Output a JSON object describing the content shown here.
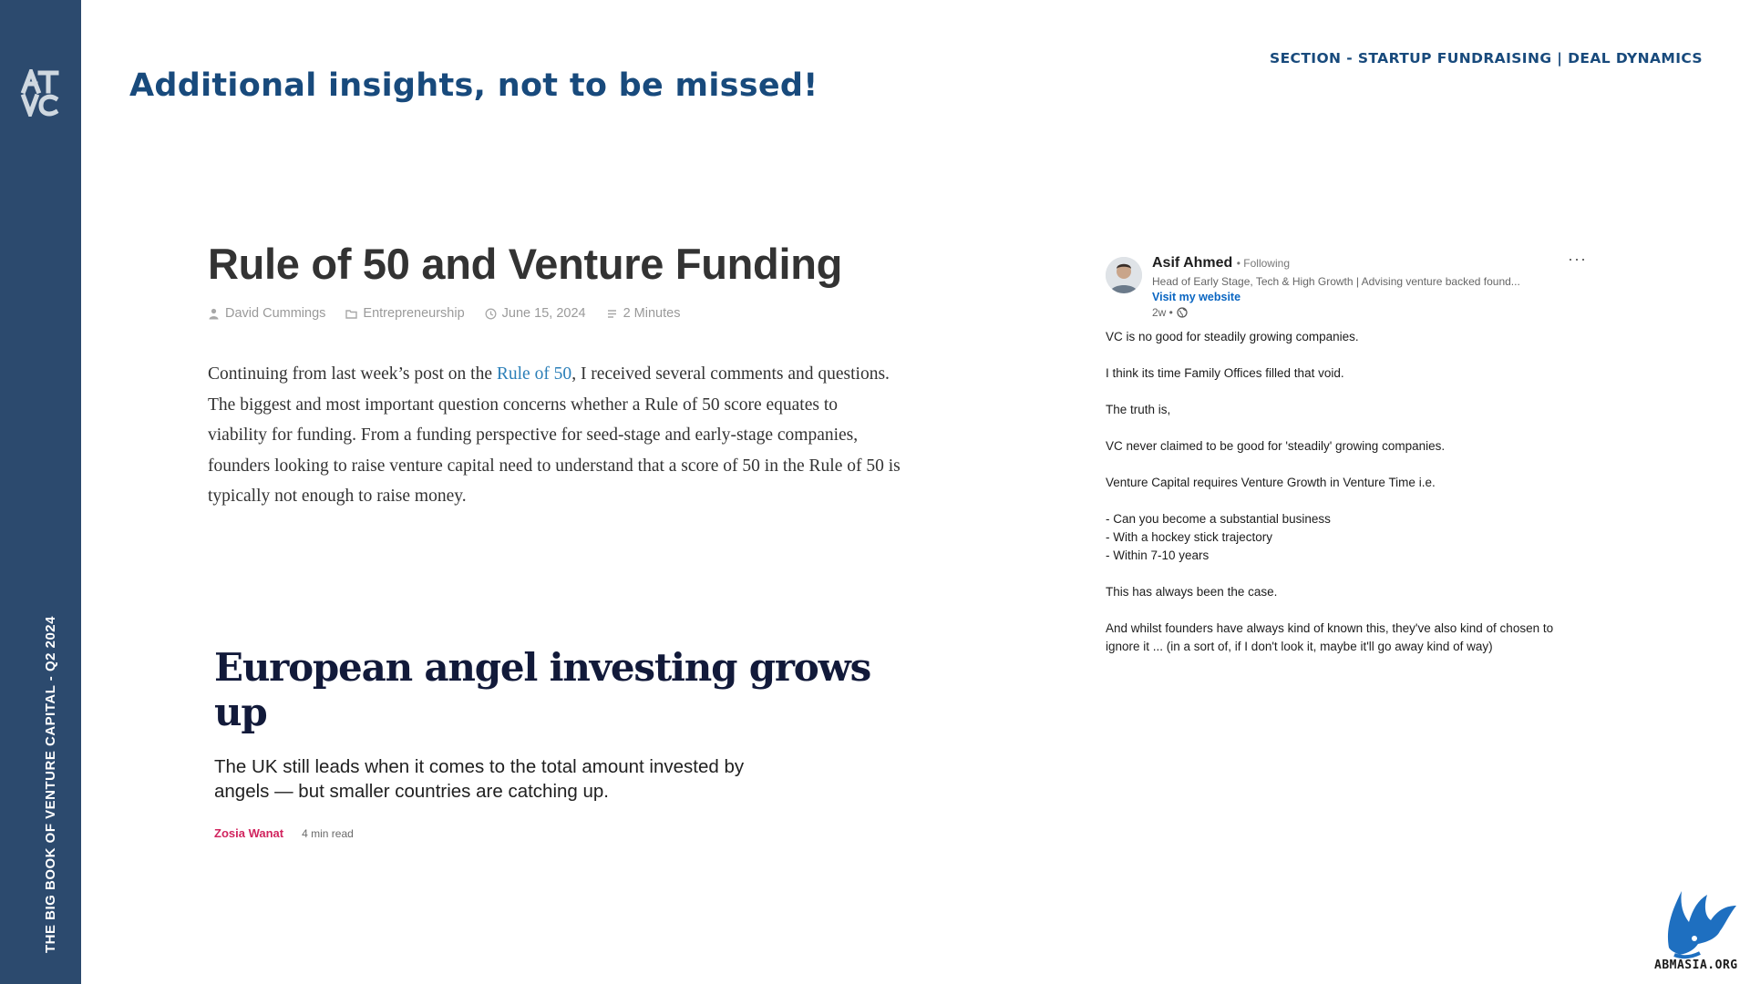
{
  "sidebar": {
    "logo_text": "ATVC",
    "vertical_label": "THE BIG BOOK OF VENTURE CAPITAL - Q2 2024"
  },
  "header": {
    "title": "Additional insights, not to be missed!",
    "section_label": "SECTION - STARTUP FUNDRAISING | DEAL DYNAMICS"
  },
  "blog": {
    "title": "Rule of 50 and Venture Funding",
    "meta": {
      "author": "David Cummings",
      "category": "Entrepreneurship",
      "date": "June 15, 2024",
      "read_time": "2 Minutes"
    },
    "body_before_link": "Continuing from last week’s post on the ",
    "body_link": "Rule of 50",
    "body_after_link": ", I received several comments and questions. The biggest and most important question concerns whether a Rule of 50 score equates to viability for funding. From a funding perspective for seed-stage and early-stage companies, founders looking to raise venture capital need to understand that a score of 50 in the Rule of 50 is typically not enough to raise money."
  },
  "angel_article": {
    "headline": "European angel investing grows up",
    "subheadline": "The UK still leads when it comes to the total amount invested by angels — but smaller countries are catching up.",
    "author": "Zosia Wanat",
    "read_time": "4 min read"
  },
  "linkedin_post": {
    "author": "Asif Ahmed",
    "following": "• Following",
    "headline": "Head of Early Stage, Tech & High Growth | Advising venture backed found...",
    "website": "Visit my website",
    "age": "2w •",
    "more": "···",
    "paragraphs": [
      "VC is no good for steadily growing companies.",
      "I think its time Family Offices filled that void.",
      "The truth is,",
      "VC never claimed to be good for 'steadily' growing companies.",
      "Venture Capital requires Venture Growth in Venture Time i.e."
    ],
    "list": [
      "- Can you become a substantial business",
      "- With a hockey stick trajectory",
      "- Within 7-10 years"
    ],
    "closing": [
      "This has always been the case.",
      "And whilst founders have always kind of known this, they've also kind of chosen to ignore it ... (in a sort of, if I don't look it, maybe it'll go away kind of way)"
    ]
  },
  "watermark": {
    "text": "ABMASIA.ORG"
  },
  "colors": {
    "sidebar": "#2c4a6e",
    "title": "#184a7c",
    "link": "#2b7fb8",
    "author_accent": "#d1245e",
    "linkedin_blue": "#0a66c2"
  }
}
